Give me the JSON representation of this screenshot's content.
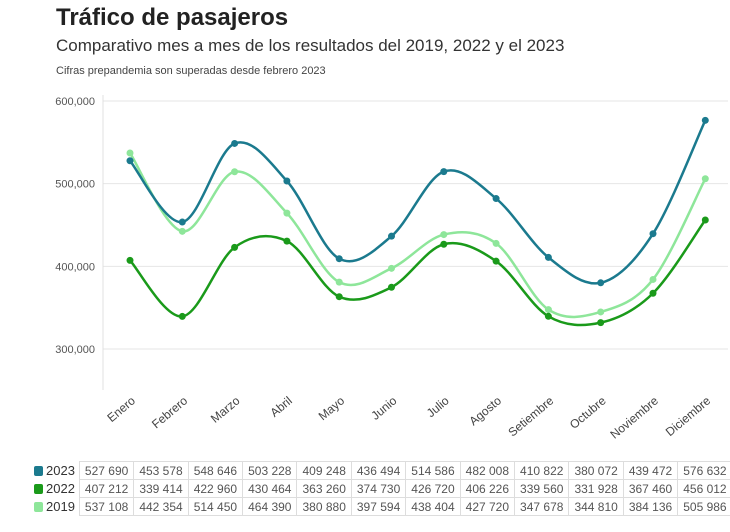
{
  "title": "Tráfico de pasajeros",
  "subtitle": "Comparativo mes a mes de los resultados del 2019, 2022 y el 2023",
  "note": "Cifras prepandemia son superadas desde febrero 2023",
  "chart_data": {
    "type": "line",
    "title": "Tráfico de pasajeros",
    "categories": [
      "Enero",
      "Febrero",
      "Marzo",
      "Abril",
      "Mayo",
      "Junio",
      "Julio",
      "Agosto",
      "Setiembre",
      "Octubre",
      "Noviembre",
      "Diciembre"
    ],
    "ylim": [
      250000,
      600000
    ],
    "yticks": [
      300000,
      400000,
      500000,
      600000
    ],
    "ytick_labels": [
      "300,000",
      "400,000",
      "500,000",
      "600,000"
    ],
    "grid": true,
    "legend": "table-bottom",
    "series": [
      {
        "name": "2023",
        "color": "#1b7a8e",
        "values": [
          527690,
          453578,
          548646,
          503228,
          409248,
          436494,
          514586,
          482008,
          410822,
          380072,
          439472,
          576632
        ],
        "labels": [
          "527 690",
          "453 578",
          "548 646",
          "503 228",
          "409 248",
          "436 494",
          "514 586",
          "482 008",
          "410 822",
          "380 072",
          "439 472",
          "576 632"
        ]
      },
      {
        "name": "2022",
        "color": "#1a9a1a",
        "values": [
          407212,
          339414,
          422960,
          430464,
          363260,
          374730,
          426720,
          406226,
          339560,
          331928,
          367460,
          456012
        ],
        "labels": [
          "407 212",
          "339 414",
          "422 960",
          "430 464",
          "363 260",
          "374 730",
          "426 720",
          "406 226",
          "339 560",
          "331 928",
          "367 460",
          "456 012"
        ]
      },
      {
        "name": "2019",
        "color": "#8ee69a",
        "values": [
          537108,
          442354,
          514450,
          464390,
          380880,
          397594,
          438404,
          427720,
          347678,
          344810,
          384136,
          505986
        ],
        "labels": [
          "537 108",
          "442 354",
          "514 450",
          "464 390",
          "380 880",
          "397 594",
          "438 404",
          "427 720",
          "347 678",
          "344 810",
          "384 136",
          "505 986"
        ]
      }
    ]
  }
}
